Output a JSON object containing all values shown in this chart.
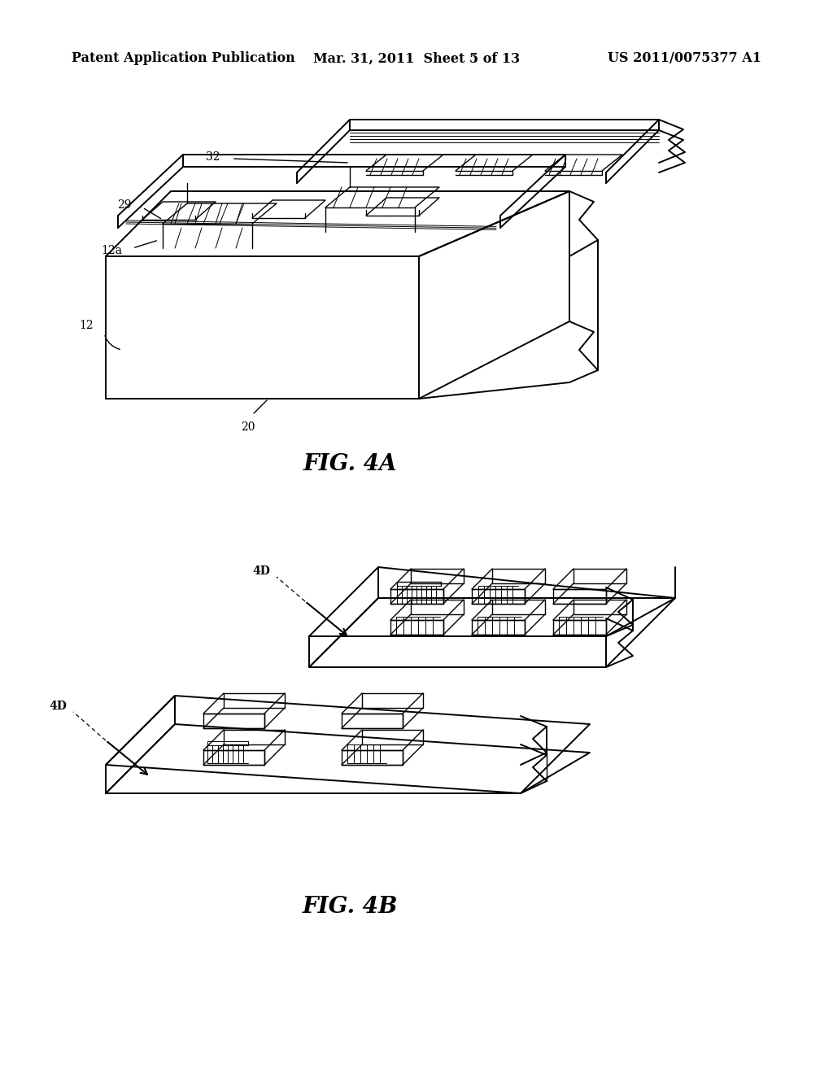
{
  "bg_color": "#ffffff",
  "header": {
    "left_text": "Patent Application Publication",
    "center_text": "Mar. 31, 2011  Sheet 5 of 13",
    "right_text": "US 2011/0075377 A1",
    "fontsize": 11.5
  },
  "fig4a_caption": "FIG. 4A",
  "fig4b_caption": "FIG. 4B",
  "caption_fontsize": 20
}
